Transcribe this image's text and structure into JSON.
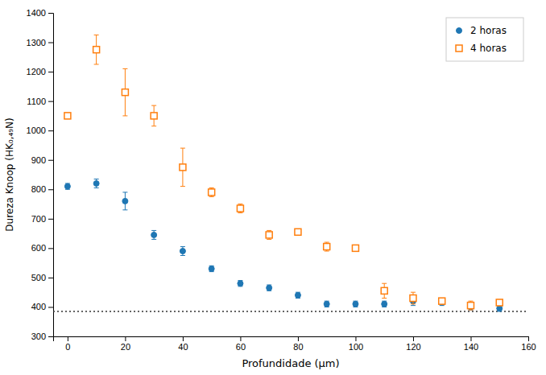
{
  "chart_data": {
    "type": "scatter",
    "xlabel": "Profundidade (μm)",
    "ylabel": "Dureza Knoop (HK₀,₄₉N)",
    "x": [
      0,
      10,
      20,
      30,
      40,
      50,
      60,
      70,
      80,
      90,
      100,
      110,
      120,
      130,
      140,
      150
    ],
    "series": [
      {
        "name": "2 horas",
        "marker": "circle",
        "values": [
          810,
          820,
          760,
          645,
          590,
          530,
          480,
          465,
          440,
          410,
          410,
          410,
          420,
          415,
          400,
          395
        ],
        "yerr": [
          10,
          15,
          30,
          15,
          15,
          10,
          10,
          10,
          10,
          10,
          10,
          10,
          15,
          10,
          10,
          10
        ]
      },
      {
        "name": "4 horas",
        "marker": "square",
        "values": [
          1050,
          1275,
          1130,
          1050,
          875,
          790,
          735,
          645,
          655,
          605,
          600,
          455,
          430,
          420,
          405,
          415
        ],
        "yerr": [
          10,
          50,
          80,
          35,
          65,
          15,
          15,
          15,
          10,
          15,
          10,
          25,
          20,
          10,
          15,
          10
        ]
      }
    ],
    "baseline": 385,
    "xlim": [
      -5,
      160
    ],
    "ylim": [
      300,
      1400
    ],
    "xticks": [
      0,
      20,
      40,
      60,
      80,
      100,
      120,
      140,
      160
    ],
    "yticks": [
      300,
      400,
      500,
      600,
      700,
      800,
      900,
      1000,
      1100,
      1200,
      1300,
      1400
    ],
    "grid": false,
    "legend": "upper right"
  }
}
